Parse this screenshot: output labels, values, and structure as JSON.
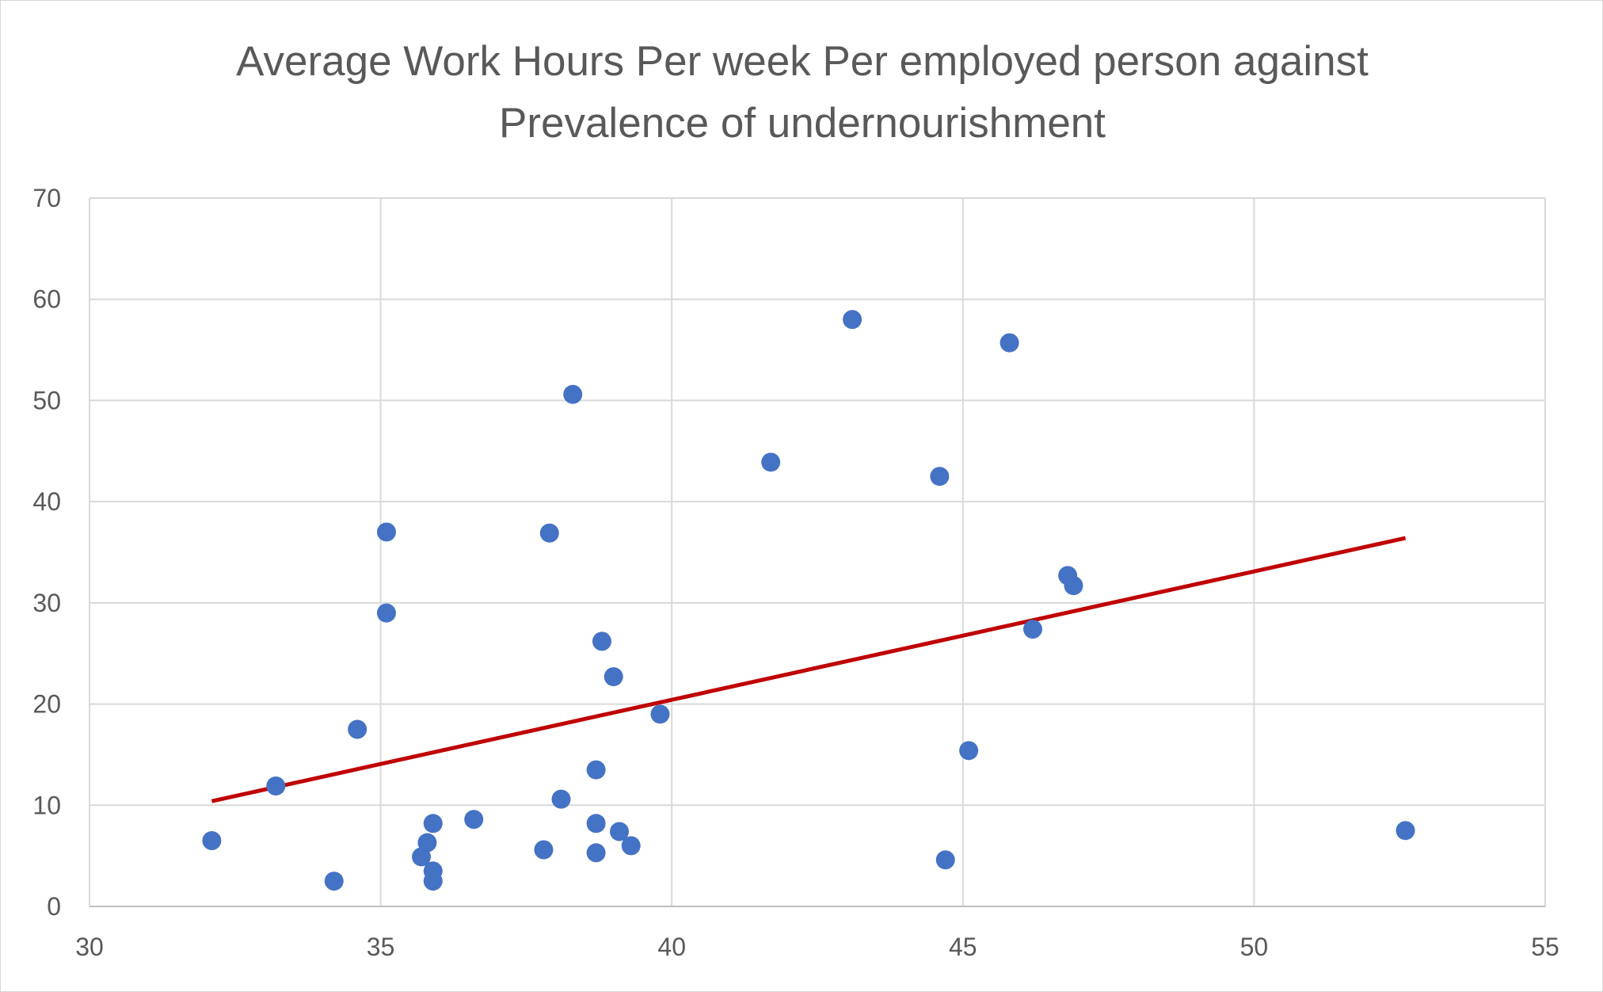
{
  "chart_data": {
    "type": "scatter",
    "title_lines": [
      "Average Work Hours Per week Per employed person against",
      "Prevalence of undernourishment"
    ],
    "xlabel": "",
    "ylabel": "",
    "xlim": [
      30,
      55
    ],
    "ylim": [
      0,
      70
    ],
    "x_ticks": [
      30,
      35,
      40,
      45,
      50,
      55
    ],
    "y_ticks": [
      0,
      10,
      20,
      30,
      40,
      50,
      60,
      70
    ],
    "grid": true,
    "legend": "none",
    "colors": {
      "points": "#4472c4",
      "trendline": "#c00000",
      "grid": "#d9d9d9",
      "text": "#595959"
    },
    "series": [
      {
        "points": [
          {
            "x": 32.1,
            "y": 6.5
          },
          {
            "x": 33.2,
            "y": 11.9
          },
          {
            "x": 34.2,
            "y": 2.5
          },
          {
            "x": 34.6,
            "y": 17.5
          },
          {
            "x": 35.1,
            "y": 37.0
          },
          {
            "x": 35.1,
            "y": 29.0
          },
          {
            "x": 35.7,
            "y": 4.9
          },
          {
            "x": 35.8,
            "y": 6.3
          },
          {
            "x": 35.9,
            "y": 8.2
          },
          {
            "x": 35.9,
            "y": 3.5
          },
          {
            "x": 35.9,
            "y": 2.5
          },
          {
            "x": 36.6,
            "y": 8.6
          },
          {
            "x": 37.8,
            "y": 5.6
          },
          {
            "x": 37.9,
            "y": 36.9
          },
          {
            "x": 38.1,
            "y": 10.6
          },
          {
            "x": 38.3,
            "y": 50.6
          },
          {
            "x": 38.7,
            "y": 13.5
          },
          {
            "x": 38.7,
            "y": 8.2
          },
          {
            "x": 38.7,
            "y": 5.3
          },
          {
            "x": 38.8,
            "y": 26.2
          },
          {
            "x": 39.0,
            "y": 22.7
          },
          {
            "x": 39.1,
            "y": 7.4
          },
          {
            "x": 39.3,
            "y": 6.0
          },
          {
            "x": 39.8,
            "y": 19.0
          },
          {
            "x": 41.7,
            "y": 43.9
          },
          {
            "x": 43.1,
            "y": 58.0
          },
          {
            "x": 44.6,
            "y": 42.5
          },
          {
            "x": 44.7,
            "y": 4.6
          },
          {
            "x": 45.1,
            "y": 15.4
          },
          {
            "x": 45.8,
            "y": 55.7
          },
          {
            "x": 46.2,
            "y": 27.4
          },
          {
            "x": 46.8,
            "y": 32.7
          },
          {
            "x": 46.9,
            "y": 31.7
          },
          {
            "x": 52.6,
            "y": 7.5
          }
        ]
      }
    ],
    "trendline": {
      "type": "linear",
      "x": [
        32.1,
        52.6
      ],
      "y": [
        10.4,
        36.4
      ]
    }
  }
}
